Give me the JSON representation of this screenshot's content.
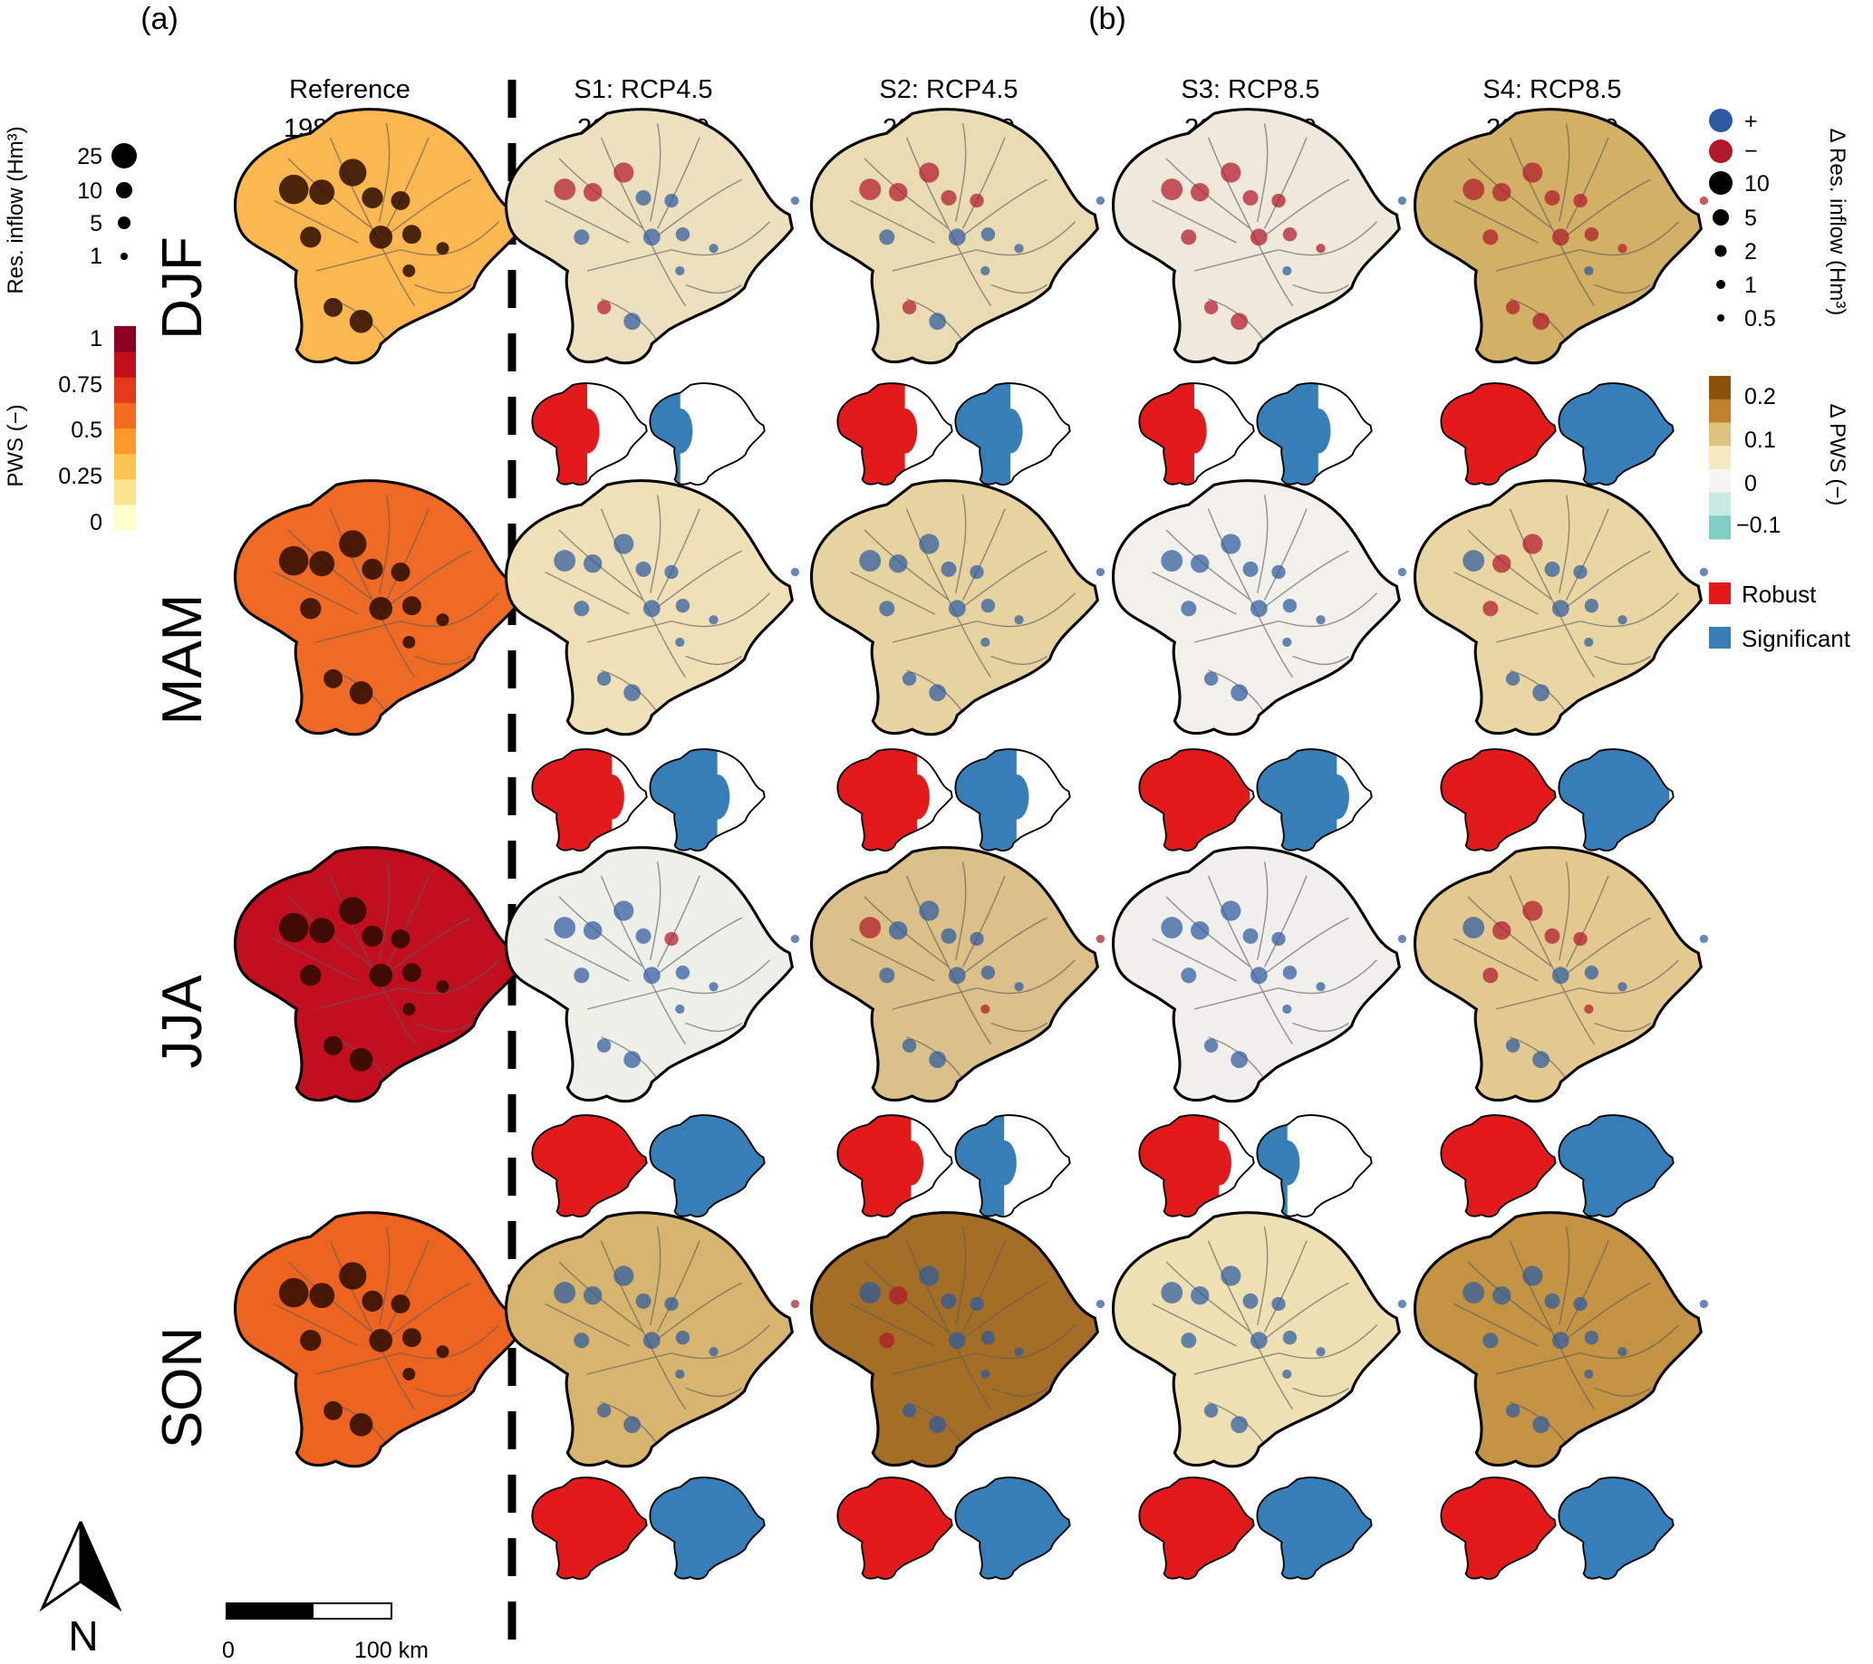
{
  "panel_labels": {
    "a": "(a)",
    "b": "(b)"
  },
  "column_headers": [
    {
      "line1": "Reference",
      "line2": "1981−2000"
    },
    {
      "line1": "S1: RCP4.5",
      "line2": "2031−2050"
    },
    {
      "line1": "S2: RCP4.5",
      "line2": "2081−2100"
    },
    {
      "line1": "S3: RCP8.5",
      "line2": "2031−2050"
    },
    {
      "line1": "S4: RCP8.5",
      "line2": "2081−2100"
    }
  ],
  "seasons": [
    "DJF",
    "MAM",
    "JJA",
    "SON"
  ],
  "left_legend": {
    "size_title": "Res. inflow (Hm³)",
    "size_labels": [
      "25",
      "10",
      "5",
      "1"
    ],
    "color_title": "PWS (−)",
    "color_labels": [
      "1",
      "0.75",
      "0.5",
      "0.25",
      "0"
    ],
    "colors": [
      "#ffffcc",
      "#fee391",
      "#fec44f",
      "#fe9929",
      "#f46d1e",
      "#e23a1a",
      "#c40f1a",
      "#8b0020"
    ]
  },
  "right_legend": {
    "size_title": "Δ Res. inflow (Hm³)",
    "sign_labels": [
      "+",
      "−"
    ],
    "size_labels": [
      "10",
      "5",
      "2",
      "1",
      "0.5"
    ],
    "color_title": "Δ PWS (−)",
    "color_labels": [
      "0.2",
      "0.1",
      "0",
      "−0.1"
    ],
    "colors": [
      "#8c510a",
      "#bf812d",
      "#dfc27d",
      "#f6e8c3",
      "#f5f5f5",
      "#c7eae5",
      "#80cdc1"
    ],
    "mask_labels": [
      "Robust",
      "Significant"
    ],
    "mask_colors": {
      "robust": "#e31a1c",
      "significant": "#377eb8"
    },
    "sign_colors": {
      "plus": "#2c5aa0",
      "minus": "#b2182b"
    }
  },
  "scale_bar": {
    "start": "0",
    "end": "100 km"
  },
  "north_arrow": "N",
  "colors": {
    "ref_fill": [
      "#fbb850",
      "#ef6a24",
      "#c10f20",
      "#ec6420"
    ],
    "delta_fill": [
      [
        "#ece0bf",
        "#efe0b8",
        "#efefe9",
        "#d7b56f"
      ],
      [
        "#eadbb3",
        "#e6d3a0",
        "#dcc08a",
        "#a46e27"
      ],
      [
        "#efe9db",
        "#f2f0ea",
        "#f0efec",
        "#efe0b3"
      ],
      [
        "#d2b065",
        "#e9d6a3",
        "#e3c98f",
        "#c49344"
      ]
    ],
    "robust_cover": [
      [
        0.5,
        0.7,
        0.95,
        1.0
      ],
      [
        0.6,
        0.7,
        0.65,
        1.0
      ],
      [
        0.5,
        0.85,
        0.7,
        1.0
      ],
      [
        1.0,
        1.0,
        1.0,
        1.0
      ]
    ],
    "significant_cover": [
      [
        0.3,
        0.6,
        0.9,
        1.0
      ],
      [
        0.5,
        0.55,
        0.45,
        1.0
      ],
      [
        0.55,
        0.7,
        0.3,
        1.0
      ],
      [
        1.0,
        0.85,
        0.9,
        1.0
      ]
    ]
  }
}
